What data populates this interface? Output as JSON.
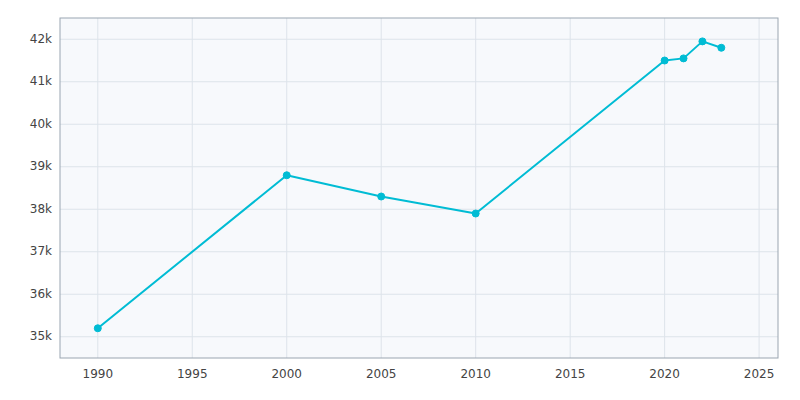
{
  "chart_data": {
    "type": "line",
    "x": [
      1990,
      2000,
      2005,
      2010,
      2020,
      2021,
      2022,
      2023
    ],
    "values": [
      35200,
      38800,
      38300,
      37900,
      41500,
      41550,
      41950,
      41800
    ],
    "color": "#00BCD4",
    "marker": "circle",
    "xlim": [
      1988,
      2026
    ],
    "ylim": [
      34500,
      42500
    ],
    "xticks": [
      1990,
      1995,
      2000,
      2005,
      2010,
      2015,
      2020,
      2025
    ],
    "yticks": [
      {
        "value": 35000,
        "label": "35k"
      },
      {
        "value": 36000,
        "label": "36k"
      },
      {
        "value": 37000,
        "label": "37k"
      },
      {
        "value": 38000,
        "label": "38k"
      },
      {
        "value": 39000,
        "label": "39k"
      },
      {
        "value": 40000,
        "label": "40k"
      },
      {
        "value": 41000,
        "label": "41k"
      },
      {
        "value": 42000,
        "label": "42k"
      }
    ],
    "grid": true
  }
}
